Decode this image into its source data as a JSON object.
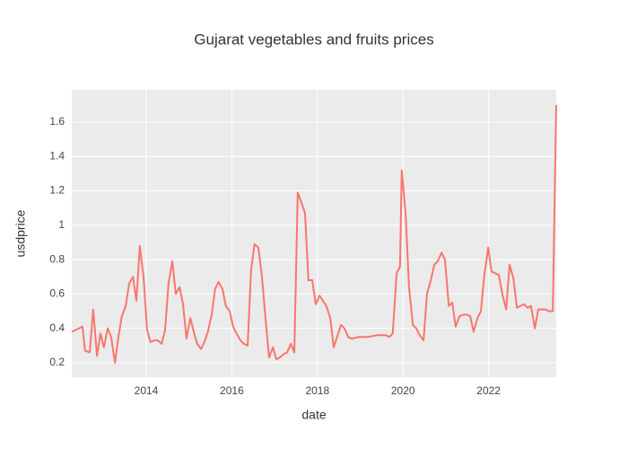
{
  "chart_data": {
    "type": "line",
    "title": "Gujarat vegetables and fruits prices",
    "x_label": "date",
    "y_label": "usdprice",
    "x": [
      2012.26,
      2012.51,
      2012.57,
      2012.68,
      2012.76,
      2012.85,
      2012.93,
      2013.01,
      2013.1,
      2013.18,
      2013.27,
      2013.35,
      2013.43,
      2013.52,
      2013.6,
      2013.69,
      2013.77,
      2013.85,
      2013.94,
      2014.02,
      2014.1,
      2014.19,
      2014.27,
      2014.36,
      2014.44,
      2014.52,
      2014.61,
      2014.69,
      2014.78,
      2014.86,
      2014.94,
      2015.03,
      2015.11,
      2015.19,
      2015.28,
      2015.36,
      2015.44,
      2015.53,
      2015.61,
      2015.69,
      2015.78,
      2015.86,
      2015.95,
      2016.03,
      2016.11,
      2016.2,
      2016.28,
      2016.37,
      2016.45,
      2016.53,
      2016.62,
      2016.7,
      2016.79,
      2016.87,
      2016.96,
      2017.04,
      2017.12,
      2017.21,
      2017.29,
      2017.38,
      2017.46,
      2017.54,
      2017.63,
      2017.71,
      2017.79,
      2017.88,
      2017.96,
      2018.05,
      2018.13,
      2018.21,
      2018.3,
      2018.38,
      2018.46,
      2018.55,
      2018.63,
      2018.72,
      2018.8,
      2018.97,
      2019.18,
      2019.39,
      2019.6,
      2019.68,
      2019.76,
      2019.85,
      2019.93,
      2019.97,
      2020.06,
      2020.14,
      2020.23,
      2020.31,
      2020.39,
      2020.48,
      2020.56,
      2020.65,
      2020.73,
      2020.81,
      2020.9,
      2020.98,
      2021.07,
      2021.15,
      2021.23,
      2021.32,
      2021.4,
      2021.49,
      2021.57,
      2021.65,
      2021.74,
      2021.82,
      2021.9,
      2021.99,
      2022.07,
      2022.16,
      2022.24,
      2022.32,
      2022.41,
      2022.49,
      2022.58,
      2022.66,
      2022.74,
      2022.83,
      2022.91,
      2022.99,
      2023.08,
      2023.16,
      2023.24,
      2023.33,
      2023.41,
      2023.5,
      2023.58
    ],
    "series": [
      {
        "color": "#f8766d",
        "values": [
          0.38,
          0.41,
          0.27,
          0.26,
          0.51,
          0.24,
          0.37,
          0.29,
          0.4,
          0.35,
          0.2,
          0.35,
          0.47,
          0.53,
          0.66,
          0.7,
          0.56,
          0.88,
          0.69,
          0.39,
          0.32,
          0.33,
          0.33,
          0.31,
          0.39,
          0.66,
          0.79,
          0.6,
          0.64,
          0.54,
          0.34,
          0.46,
          0.38,
          0.31,
          0.28,
          0.32,
          0.38,
          0.48,
          0.63,
          0.67,
          0.63,
          0.53,
          0.5,
          0.41,
          0.37,
          0.33,
          0.31,
          0.3,
          0.74,
          0.89,
          0.87,
          0.71,
          0.45,
          0.23,
          0.29,
          0.22,
          0.23,
          0.25,
          0.26,
          0.31,
          0.26,
          1.19,
          1.13,
          1.07,
          0.68,
          0.68,
          0.54,
          0.59,
          0.56,
          0.53,
          0.46,
          0.29,
          0.35,
          0.42,
          0.4,
          0.35,
          0.34,
          0.35,
          0.35,
          0.36,
          0.36,
          0.35,
          0.37,
          0.72,
          0.76,
          1.32,
          1.07,
          0.64,
          0.42,
          0.4,
          0.36,
          0.33,
          0.6,
          0.68,
          0.77,
          0.79,
          0.84,
          0.8,
          0.53,
          0.55,
          0.41,
          0.47,
          0.48,
          0.48,
          0.47,
          0.38,
          0.46,
          0.5,
          0.71,
          0.87,
          0.73,
          0.72,
          0.71,
          0.6,
          0.51,
          0.77,
          0.69,
          0.52,
          0.53,
          0.54,
          0.52,
          0.53,
          0.4,
          0.51,
          0.51,
          0.51,
          0.5,
          0.5,
          1.7
        ]
      }
    ],
    "xlim": [
      2012.26,
      2023.58
    ],
    "xticks": [
      2014,
      2016,
      2018,
      2020,
      2022
    ],
    "ylim": [
      0.116,
      1.788
    ],
    "yticks": [
      0.2,
      0.4,
      0.6,
      0.8,
      1,
      1.2,
      1.4,
      1.6
    ],
    "grid": true
  }
}
